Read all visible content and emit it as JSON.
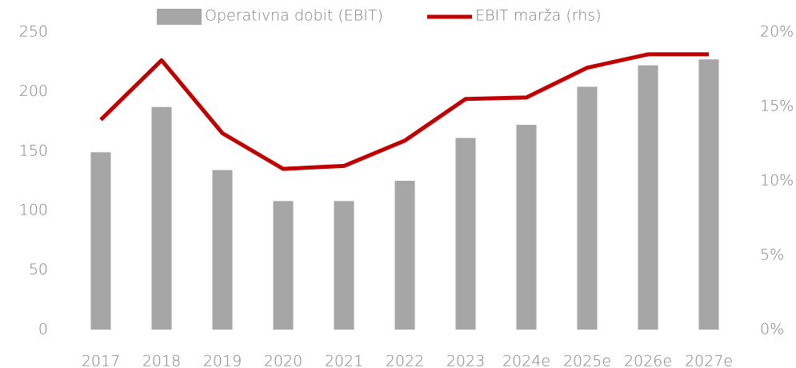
{
  "chart_data": {
    "type": "bar",
    "categories": [
      "2017",
      "2018",
      "2019",
      "2020",
      "2021",
      "2022",
      "2023",
      "2024e",
      "2025e",
      "2026e",
      "2027e"
    ],
    "series": [
      {
        "name": "Operativna dobit (EBIT)",
        "type": "bar",
        "color": "#a6a6a6",
        "values": [
          149,
          187,
          134,
          108,
          108,
          125,
          161,
          172,
          204,
          222,
          227
        ]
      },
      {
        "name": "EBIT marža (rhs)",
        "type": "line",
        "axis": "y2",
        "color": "#c00000",
        "values": [
          14.1,
          18.1,
          13.2,
          10.8,
          11.0,
          12.7,
          15.5,
          15.6,
          17.6,
          18.5,
          18.5
        ]
      }
    ],
    "ylim": [
      0,
      250
    ],
    "yticks": [
      0,
      50,
      100,
      150,
      200,
      250
    ],
    "y2lim": [
      0,
      20
    ],
    "y2ticks": [
      {
        "value": 0,
        "label": "0%"
      },
      {
        "value": 5,
        "label": "5%"
      },
      {
        "value": 10,
        "label": "10%"
      },
      {
        "value": 15,
        "label": "15%"
      },
      {
        "value": 20,
        "label": "20%"
      }
    ],
    "grid": false,
    "legend": "top"
  }
}
